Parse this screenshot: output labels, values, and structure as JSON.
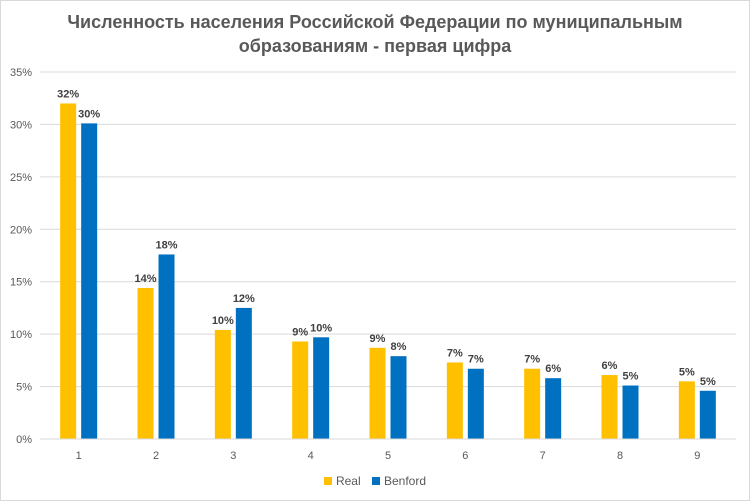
{
  "chart_data": {
    "type": "bar",
    "title": [
      "Численность населения Российской Федерации по муниципальным",
      "образованиям - первая цифра"
    ],
    "categories": [
      "1",
      "2",
      "3",
      "4",
      "5",
      "6",
      "7",
      "8",
      "9"
    ],
    "series": [
      {
        "name": "Real",
        "color": "#ffc000",
        "values": [
          0.32,
          0.144,
          0.104,
          0.093,
          0.087,
          0.073,
          0.067,
          0.061,
          0.055
        ],
        "labels": [
          "32%",
          "14%",
          "10%",
          "9%",
          "9%",
          "7%",
          "7%",
          "6%",
          "5%"
        ]
      },
      {
        "name": "Benford",
        "color": "#0070c0",
        "values": [
          0.301,
          0.176,
          0.125,
          0.097,
          0.079,
          0.067,
          0.058,
          0.051,
          0.046
        ],
        "labels": [
          "30%",
          "18%",
          "12%",
          "10%",
          "8%",
          "7%",
          "6%",
          "5%",
          "5%"
        ]
      }
    ],
    "yticks": [
      "0%",
      "5%",
      "10%",
      "15%",
      "20%",
      "25%",
      "30%",
      "35%"
    ],
    "ylim": [
      0,
      0.35
    ],
    "grid": true,
    "legend": "bottom"
  }
}
